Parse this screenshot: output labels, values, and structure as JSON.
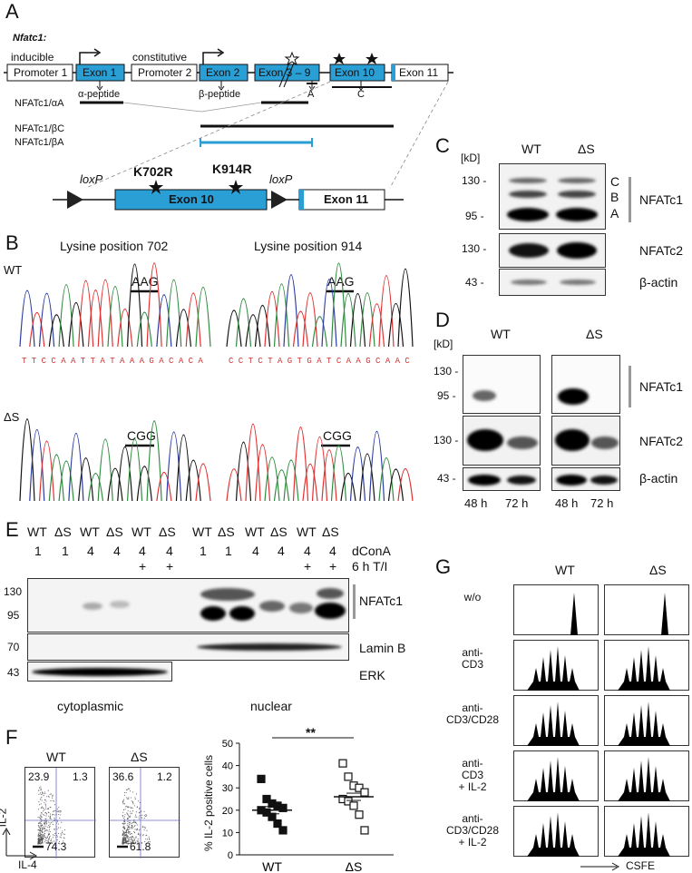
{
  "panelA": {
    "label": "A",
    "gene": "Nfatc1:",
    "promoter1_note": "inducible",
    "promoter1": "Promoter 1",
    "promoter2_note": "constitutive",
    "promoter2": "Promoter 2",
    "exons": [
      "Exon 1",
      "Exon 2",
      "Exon 3 – 9",
      "Exon 10",
      "Exon 11"
    ],
    "peptides": [
      "α-peptide",
      "β-peptide"
    ],
    "ends": [
      "A",
      "C"
    ],
    "isoforms": [
      "NFATc1/αA",
      "NFATc1/βC",
      "NFATc1/βA"
    ],
    "construct": {
      "loxp": "loxP",
      "mut1": "K702R",
      "mut2": "K914R",
      "exon10": "Exon 10",
      "exon11": "Exon 11"
    }
  },
  "panelB": {
    "label": "B",
    "col1": "Lysine position 702",
    "col2": "Lysine position 914",
    "row1": "WT",
    "row2": "ΔS",
    "codon_wt": "AAG",
    "codon_mut": "CGG",
    "seq1": "T T C C A A T T A T A A A G A C A C A",
    "seq2": "C C T C T A G T G A T C A A G C A A C"
  },
  "panelC": {
    "label": "C",
    "kd": "[kD]",
    "lanes": [
      "WT",
      "ΔS"
    ],
    "markers": [
      "130 -",
      "95 -",
      "130 -",
      "43 -"
    ],
    "isoforms": [
      "C",
      "B",
      "A"
    ],
    "rows": [
      "NFATc1",
      "NFATc2",
      "β-actin"
    ]
  },
  "panelD": {
    "label": "D",
    "kd": "[kD]",
    "groups": [
      "WT",
      "ΔS"
    ],
    "markers": [
      "130 -",
      "95 -",
      "130 -",
      "43 -"
    ],
    "rows": [
      "NFATc1",
      "NFATc2",
      "β-actin"
    ],
    "times": [
      "48 h",
      "72 h",
      "48 h",
      "72 h"
    ]
  },
  "panelE": {
    "label": "E",
    "lanes": [
      "WT",
      "ΔS",
      "WT",
      "ΔS",
      "WT",
      "ΔS",
      "WT",
      "ΔS",
      "WT",
      "ΔS",
      "WT",
      "ΔS"
    ],
    "dcona": [
      "1",
      "1",
      "4",
      "4",
      "4",
      "4",
      "1",
      "1",
      "4",
      "4",
      "4",
      "4"
    ],
    "ti": [
      "",
      "",
      "",
      "",
      "+",
      "+",
      "",
      "",
      "",
      "",
      "+",
      "+"
    ],
    "cond1": "dConA",
    "cond2": "6 h T/I",
    "markers": [
      "130",
      "95",
      "70",
      "43"
    ],
    "rows": [
      "NFATc1",
      "Lamin B",
      "ERK"
    ],
    "fractions": [
      "cytoplasmic",
      "nuclear"
    ]
  },
  "panelF": {
    "label": "F",
    "plots": [
      {
        "title": "WT",
        "q_ul": "23.9",
        "q_ur": "1.3",
        "q_ll": "74.3"
      },
      {
        "title": "ΔS",
        "q_ul": "36.6",
        "q_ur": "1.2",
        "q_ll": "61.8"
      }
    ],
    "xaxis": "IL-4",
    "yaxis": "IL-2",
    "chart_data": {
      "type": "scatter",
      "ylabel": "% IL-2 positive cells",
      "categories": [
        "WT",
        "ΔS"
      ],
      "ylim": [
        0,
        50
      ],
      "yticks": [
        "0",
        "10",
        "20",
        "30",
        "40",
        "50"
      ],
      "significance": "**",
      "series": [
        {
          "name": "WT",
          "values": [
            34,
            25,
            23,
            22,
            21,
            20,
            19,
            17,
            14,
            11
          ],
          "mean": 20
        },
        {
          "name": "ΔS",
          "values": [
            41,
            35,
            31,
            30,
            28,
            25,
            24,
            22,
            18,
            11
          ],
          "mean": 26
        }
      ]
    }
  },
  "panelG": {
    "label": "G",
    "cols": [
      "WT",
      "ΔS"
    ],
    "rows": [
      "w/o",
      "anti-\nCD3",
      "anti-\nCD3/CD28",
      "anti-\nCD3\n+ IL-2",
      "anti-\nCD3/CD28\n+ IL-2"
    ],
    "xaxis": "CSFE"
  }
}
